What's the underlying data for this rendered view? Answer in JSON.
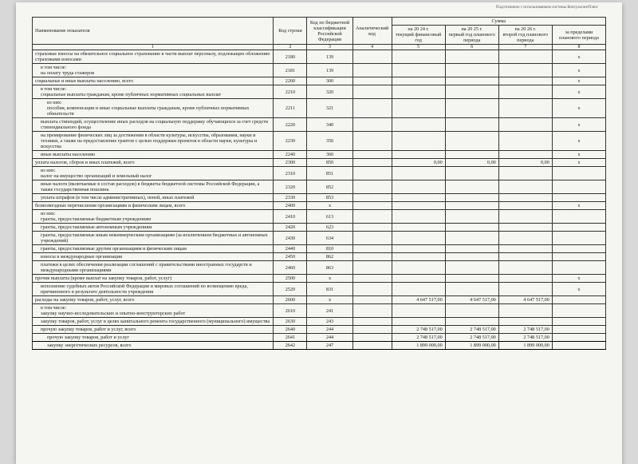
{
  "header_note": "Подготовлено с использованием системы КонсультантПлюс",
  "headers": {
    "name": "Наименование показателя",
    "code": "Код строки",
    "kbk": "Код по бюджетной классификации Российской Федерации",
    "anal": "Аналитический код",
    "sum": "Сумма",
    "y1_line1": "на 20 24 г.",
    "y1_line2": "текущий финансовый год",
    "y2_line1": "на 20 25 г.",
    "y2_line2": "первый год планового периода",
    "y3_line1": "на 20 26 г.",
    "y3_line2": "второй год планового периода",
    "beyond": "за пределами планового периода"
  },
  "colnums": [
    "1",
    "2",
    "3",
    "4",
    "5",
    "6",
    "7",
    "8"
  ],
  "rows": [
    {
      "name": "страховые взносы на обязательное социальное страхование в части выплат персоналу, подлежащих обложению страховыми взносами",
      "code": "2180",
      "kbk": "139",
      "v": [
        "",
        "",
        "",
        "x"
      ]
    },
    {
      "name": "в том числе:\nна оплату труда стажеров",
      "code": "2181",
      "kbk": "139",
      "v": [
        "",
        "",
        "",
        "x"
      ],
      "indent": 1
    },
    {
      "name": "социальные и иные выплаты населению, всего",
      "code": "2200",
      "kbk": "300",
      "v": [
        "",
        "",
        "",
        "x"
      ]
    },
    {
      "name": "в том числе:\nсоциальные выплаты гражданам, кроме публичных нормативных социальных выплат",
      "code": "2210",
      "kbk": "320",
      "v": [
        "",
        "",
        "",
        "x"
      ],
      "indent": 1
    },
    {
      "name": "из них:\nпособия, компенсации и иные социальные выплаты гражданам, кроме публичных нормативных обязательств",
      "code": "2211",
      "kbk": "321",
      "v": [
        "",
        "",
        "",
        "x"
      ],
      "indent": 2
    },
    {
      "name": "выплата стипендий, осуществление иных расходов на социальную поддержку обучающихся за счет средств стипендиального фонда",
      "code": "2220",
      "kbk": "340",
      "v": [
        "",
        "",
        "",
        "x"
      ],
      "indent": 1
    },
    {
      "name": "на премирование физических лиц за достижения в области культуры, искусства, образования, науки и техники, а также на предоставление грантов с целью поддержки проектов в области науки, культуры и искусства",
      "code": "2230",
      "kbk": "350",
      "v": [
        "",
        "",
        "",
        "x"
      ],
      "indent": 1
    },
    {
      "name": "иные выплаты населению",
      "code": "2240",
      "kbk": "360",
      "v": [
        "",
        "",
        "",
        "x"
      ],
      "indent": 1
    },
    {
      "name": "уплата налогов, сборов и иных платежей, всего",
      "code": "2300",
      "kbk": "850",
      "v": [
        "0,00",
        "0,00",
        "0,00",
        "x"
      ]
    },
    {
      "name": "из них:\nналог на имущество организаций и земельный налог",
      "code": "2310",
      "kbk": "851",
      "v": [
        "",
        "",
        "",
        ""
      ],
      "indent": 1
    },
    {
      "name": "иные налоги (включаемые в состав расходов) в бюджеты бюджетной системы Российской Федерации, а также государственная пошлина",
      "code": "2320",
      "kbk": "852",
      "v": [
        "",
        "",
        "",
        ""
      ],
      "indent": 1
    },
    {
      "name": "уплата штрафов (в том числе административных), пеней, иных платежей",
      "code": "2330",
      "kbk": "853",
      "v": [
        "",
        "",
        "",
        ""
      ],
      "indent": 1
    },
    {
      "name": "безвозмездные перечисления организациям и физическим лицам, всего",
      "code": "2400",
      "kbk": "x",
      "v": [
        "",
        "",
        "",
        "x"
      ]
    },
    {
      "name": "из них:\nгранты, предоставляемые бюджетным учреждениям",
      "code": "2410",
      "kbk": "613",
      "v": [
        "",
        "",
        "",
        ""
      ],
      "indent": 1
    },
    {
      "name": "гранты, предоставляемые автономным учреждениям",
      "code": "2420",
      "kbk": "623",
      "v": [
        "",
        "",
        "",
        ""
      ],
      "indent": 1
    },
    {
      "name": "гранты, предоставляемые иным некоммерческим организациям (за исключением бюджетных и автономных учреждений)",
      "code": "2430",
      "kbk": "634",
      "v": [
        "",
        "",
        "",
        ""
      ],
      "indent": 1
    },
    {
      "name": "гранты, предоставляемые другим организациям и физическим лицам",
      "code": "2440",
      "kbk": "810",
      "v": [
        "",
        "",
        "",
        ""
      ],
      "indent": 1
    },
    {
      "name": "взносы в международные организации",
      "code": "2450",
      "kbk": "862",
      "v": [
        "",
        "",
        "",
        ""
      ],
      "indent": 1
    },
    {
      "name": "платежи в целях обеспечения реализации соглашений с правительствами иностранных государств и международными организациями",
      "code": "2460",
      "kbk": "863",
      "v": [
        "",
        "",
        "",
        ""
      ],
      "indent": 1
    },
    {
      "name": "прочие выплаты (кроме выплат на закупку товаров, работ, услуг)",
      "code": "2500",
      "kbk": "x",
      "v": [
        "",
        "",
        "",
        "x"
      ]
    },
    {
      "name": "исполнение судебных актов Российской Федерации и мировых соглашений по возмещению вреда, причиненного в результате деятельности учреждения",
      "code": "2520",
      "kbk": "831",
      "v": [
        "",
        "",
        "",
        "x"
      ],
      "indent": 1
    },
    {
      "name": "расходы на закупку товаров, работ, услуг, всего",
      "code": "2600",
      "kbk": "x",
      "v": [
        "4 647 517,00",
        "4 647 517,00",
        "4 647 517,00",
        ""
      ]
    },
    {
      "name": "в том числе:\nзакупку научно-исследовательских и опытно-конструкторских работ",
      "code": "2610",
      "kbk": "241",
      "v": [
        "",
        "",
        "",
        ""
      ],
      "indent": 1
    },
    {
      "name": "закупку товаров, работ, услуг в целях капитального ремонта государственного (муниципального) имущества",
      "code": "2630",
      "kbk": "243",
      "v": [
        "",
        "",
        "",
        ""
      ],
      "indent": 1
    },
    {
      "name": "прочую закупку товаров, работ и услуг, всего",
      "code": "2640",
      "kbk": "244",
      "v": [
        "2 748 517,00",
        "2 748 517,00",
        "2 748 517,00",
        ""
      ],
      "indent": 1
    },
    {
      "name": "прочую закупку товаров, работ и услуг",
      "code": "2641",
      "kbk": "244",
      "v": [
        "2 748 517,00",
        "2 748 517,00",
        "2 748 517,00",
        ""
      ],
      "indent": 2,
      "bold": true
    },
    {
      "name": "закупку энергетических ресурсов, всего",
      "code": "2642",
      "kbk": "247",
      "v": [
        "1 899 000,00",
        "1 899 000,00",
        "1 899 000,00",
        ""
      ],
      "indent": 2,
      "bold": true
    }
  ]
}
